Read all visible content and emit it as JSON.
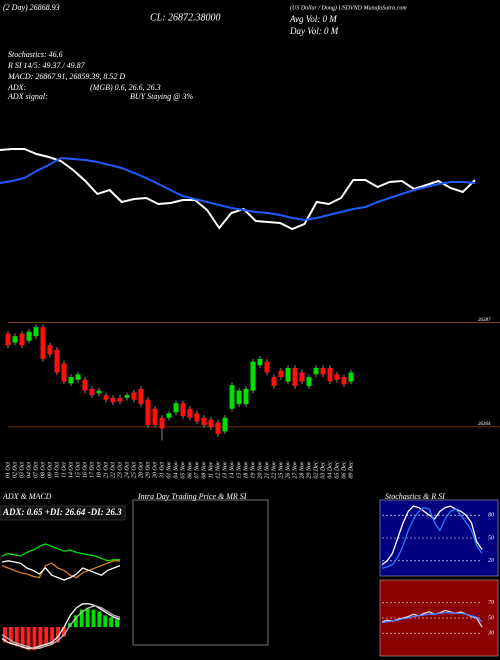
{
  "header": {
    "ema_label": "(2 Day) 26868.93",
    "close": "CL: 26872.38000",
    "name": "(US Dollar / Dong) USDVND MunafaSutra.com",
    "avg_vol": "Avg Vol: 0 M",
    "day_vol": "Day Vol: 0 M",
    "stochastics": "Stochastics: 46.6",
    "rsi": "R SI 14/5: 49.37 / 49.87",
    "macd": "MACD: 26867.91, 26859.39, 8.52 D",
    "adx_label": "ADX:",
    "adx_values": "(MGB) 0.6, 26.6, 26.3",
    "adx_signal_label": "ADX signal:",
    "adx_signal": "BUY Staying @ 3%"
  },
  "chart_data": [
    {
      "type": "line",
      "ylim": [
        26365,
        26420
      ],
      "series": [
        {
          "color": "#ffffff",
          "values": [
            26410,
            26410.5,
            26410.5,
            26408,
            26406.5,
            26404.5,
            26400,
            26394.5,
            26388,
            26390,
            26384,
            26385.5,
            26386,
            26383,
            26383.5,
            26385,
            26385,
            26380,
            26371,
            26378.5,
            26380.5,
            26374.5,
            26374,
            26373.5,
            26370.5,
            26373,
            26384,
            26383,
            26386,
            26395,
            26395,
            26391.5,
            26394,
            26394.5,
            26390.5,
            26392.5,
            26394.5,
            26391,
            26389,
            26395
          ]
        },
        {
          "color": "#1e5cff",
          "values": [
            26393.5,
            26394.5,
            26396,
            26399.5,
            26402.5,
            26406,
            26405.5,
            26405,
            26404,
            26402.5,
            26401,
            26398.5,
            26396,
            26393,
            26390,
            26387,
            26385.5,
            26384,
            26382.5,
            26381,
            26380,
            26379,
            26378.5,
            26377.5,
            26376,
            26375,
            26376,
            26377.5,
            26379,
            26380.5,
            26381.5,
            26384,
            26386,
            26388,
            26390,
            26391.5,
            26393,
            26394,
            26394,
            26393.5
          ]
        }
      ]
    },
    {
      "type": "candlestick",
      "ylim": [
        26360,
        26392
      ],
      "yticks": [
        26387,
        26364
      ],
      "up_color": "#00e000",
      "down_color": "#ff1010",
      "categories": [
        "01 Oct",
        "02 Oct",
        "03 Oct",
        "04 Oct",
        "07 Oct",
        "08 Oct",
        "09 Oct",
        "10 Oct",
        "11 Oct",
        "14 Oct",
        "15 Oct",
        "16 Oct",
        "17 Oct",
        "18 Oct",
        "21 Oct",
        "22 Oct",
        "23 Oct",
        "24 Oct",
        "25 Oct",
        "28 Oct",
        "29 Oct",
        "30 Oct",
        "31 Oct",
        "01 Nov",
        "04 Nov",
        "05 Nov",
        "06 Nov",
        "07 Nov",
        "08 Nov",
        "11 Nov",
        "12 Nov",
        "13 Nov",
        "14 Nov",
        "15 Nov",
        "18 Nov",
        "19 Nov",
        "20 Nov",
        "21 Nov",
        "22 Nov",
        "25 Nov",
        "26 Nov",
        "27 Nov",
        "28 Nov",
        "29 Nov",
        "02 Dec",
        "03 Dec",
        "04 Dec",
        "05 Dec",
        "06 Dec",
        "09 Dec"
      ],
      "open": [
        26384.6,
        26382.6,
        26384.6,
        26383,
        26384,
        26386,
        26382,
        26381,
        26378,
        26373.6,
        26374.4,
        26374.4,
        26372.4,
        26371.4,
        26371,
        26370.4,
        26370.4,
        26370.4,
        26371.6,
        26372.4,
        26370,
        26368,
        26366,
        26366,
        26367.2,
        26369.2,
        26368,
        26367,
        26366,
        26365.6,
        26365,
        26363,
        26368,
        26369,
        26369,
        26372,
        26377.6,
        26378.4,
        26375,
        26376.4,
        26374,
        26377,
        26376,
        26373,
        26375.6,
        26377,
        26377,
        26375.6,
        26375,
        26374
      ],
      "high": [
        26385.2,
        26384.6,
        26385.2,
        26385.6,
        26386.6,
        26386.6,
        26382.6,
        26381.6,
        26378.6,
        26375.6,
        26376.2,
        26375,
        26373,
        26372.6,
        26371.6,
        26371,
        26371,
        26371.6,
        26372.2,
        26373,
        26370.6,
        26368.6,
        26366.6,
        26367.6,
        26369.8,
        26369.8,
        26368.6,
        26367.6,
        26366.6,
        26366.2,
        26365.6,
        26366.6,
        26373.8,
        26372.6,
        26373,
        26379,
        26379.6,
        26379,
        26375.6,
        26377,
        26377.6,
        26377.6,
        26376.6,
        26375.6,
        26377.6,
        26377.6,
        26377.6,
        26376.2,
        26375.6,
        26376.6
      ],
      "low": [
        26381.4,
        26382,
        26381.4,
        26382.4,
        26383.4,
        26378.4,
        26379.4,
        26375.4,
        26373.4,
        26373,
        26373.8,
        26371.4,
        26370.4,
        26370.8,
        26369.4,
        26368.8,
        26369,
        26369.8,
        26369.4,
        26368.4,
        26363.8,
        26363.8,
        26361,
        26365.4,
        26366.6,
        26365.8,
        26365.4,
        26364.6,
        26363.8,
        26363.4,
        26361.8,
        26362.4,
        26367.4,
        26368.4,
        26368.4,
        26371.4,
        26377,
        26375.4,
        26372.4,
        26374.4,
        26373.4,
        26372.4,
        26373.4,
        26372.4,
        26375,
        26375,
        26373.4,
        26373.8,
        26372.8,
        26373.4
      ],
      "close": [
        26382,
        26384,
        26382,
        26385,
        26386,
        26379,
        26380,
        26376,
        26374,
        26375,
        26375.6,
        26372,
        26371,
        26372,
        26370,
        26369.4,
        26369.6,
        26371,
        26370,
        26369,
        26364.4,
        26364.4,
        26363.6,
        26367,
        26369.2,
        26366.4,
        26366,
        26365.2,
        26364.4,
        26364,
        26362.4,
        26366,
        26373.2,
        26372,
        26372.4,
        26378.4,
        26379,
        26376,
        26373,
        26375,
        26377,
        26373,
        26374,
        26375,
        26377,
        26375.6,
        26374,
        26374.4,
        26373.4,
        26376
      ]
    },
    {
      "type": "line",
      "title": "ADX & MACD",
      "subtitle": "ADX: 0.65 +DI: 26.64 -DI: 26.3",
      "ylim": [
        0,
        50
      ],
      "series": [
        {
          "color": "#00e000",
          "values": [
            30,
            32,
            31,
            30,
            33,
            35,
            38,
            40,
            38,
            36,
            34,
            35,
            33,
            32,
            31,
            30,
            28,
            26,
            27,
            27
          ]
        },
        {
          "color": "#d08020",
          "values": [
            22,
            20,
            18,
            16,
            15,
            13,
            12,
            22,
            24,
            20,
            18,
            14,
            12,
            16,
            18,
            20,
            22,
            24,
            26,
            26
          ]
        },
        {
          "color": "#ffffff",
          "values": [
            25,
            26,
            25,
            24,
            20,
            18,
            15,
            20,
            14,
            12,
            10,
            12,
            15,
            20,
            18,
            16,
            14,
            18,
            20,
            22
          ]
        }
      ]
    },
    {
      "type": "combo",
      "ylim": [
        -15,
        15
      ],
      "histogram": {
        "up_color": "#00e000",
        "down_color": "#ff2020",
        "values": [
          -8,
          -9,
          -10,
          -11,
          -12,
          -12,
          -11,
          -10,
          -9,
          -8,
          -5,
          2,
          6,
          9,
          10,
          9,
          8,
          6,
          5,
          4
        ]
      },
      "series": [
        {
          "color": "#ffffff",
          "values": [
            -6,
            -8,
            -9,
            -10,
            -11,
            -11,
            -10,
            -9,
            -8,
            -5,
            0,
            6,
            10,
            12,
            12,
            11,
            9,
            7,
            5,
            4
          ]
        },
        {
          "color": "#bbbbbb",
          "values": [
            -4,
            -6,
            -8,
            -9,
            -10,
            -11,
            -11,
            -10,
            -9,
            -7,
            -4,
            1,
            5,
            8,
            10,
            11,
            10,
            8,
            6,
            5
          ]
        }
      ]
    },
    {
      "type": "panel",
      "title": "Intra Day Trading Price & MR SI"
    },
    {
      "type": "line",
      "title": "Stochastics & R SI",
      "ylim": [
        0,
        100
      ],
      "yticks": [
        80,
        50,
        20
      ],
      "background": "#000080",
      "series": [
        {
          "color": "#ffffff",
          "values": [
            15,
            20,
            30,
            50,
            70,
            85,
            92,
            90,
            85,
            80,
            75,
            85,
            90,
            92,
            88,
            85,
            80,
            70,
            45,
            35
          ]
        },
        {
          "color": "#2a7bff",
          "values": [
            10,
            12,
            15,
            25,
            40,
            60,
            75,
            85,
            90,
            88,
            70,
            60,
            75,
            85,
            88,
            80,
            70,
            60,
            40,
            30
          ]
        }
      ]
    },
    {
      "type": "line",
      "ylim": [
        0,
        100
      ],
      "yticks": [
        70,
        50,
        30
      ],
      "background": "#8b0000",
      "series": [
        {
          "color": "#dddddd",
          "values": [
            45,
            47,
            46,
            48,
            50,
            52,
            55,
            53,
            56,
            58,
            55,
            57,
            60,
            58,
            56,
            58,
            55,
            52,
            50,
            38
          ]
        },
        {
          "color": "#4a7bff",
          "values": [
            44,
            45,
            46,
            47,
            49,
            50,
            52,
            53,
            54,
            55,
            55,
            56,
            57,
            57,
            56,
            56,
            55,
            53,
            51,
            45
          ]
        }
      ]
    }
  ]
}
